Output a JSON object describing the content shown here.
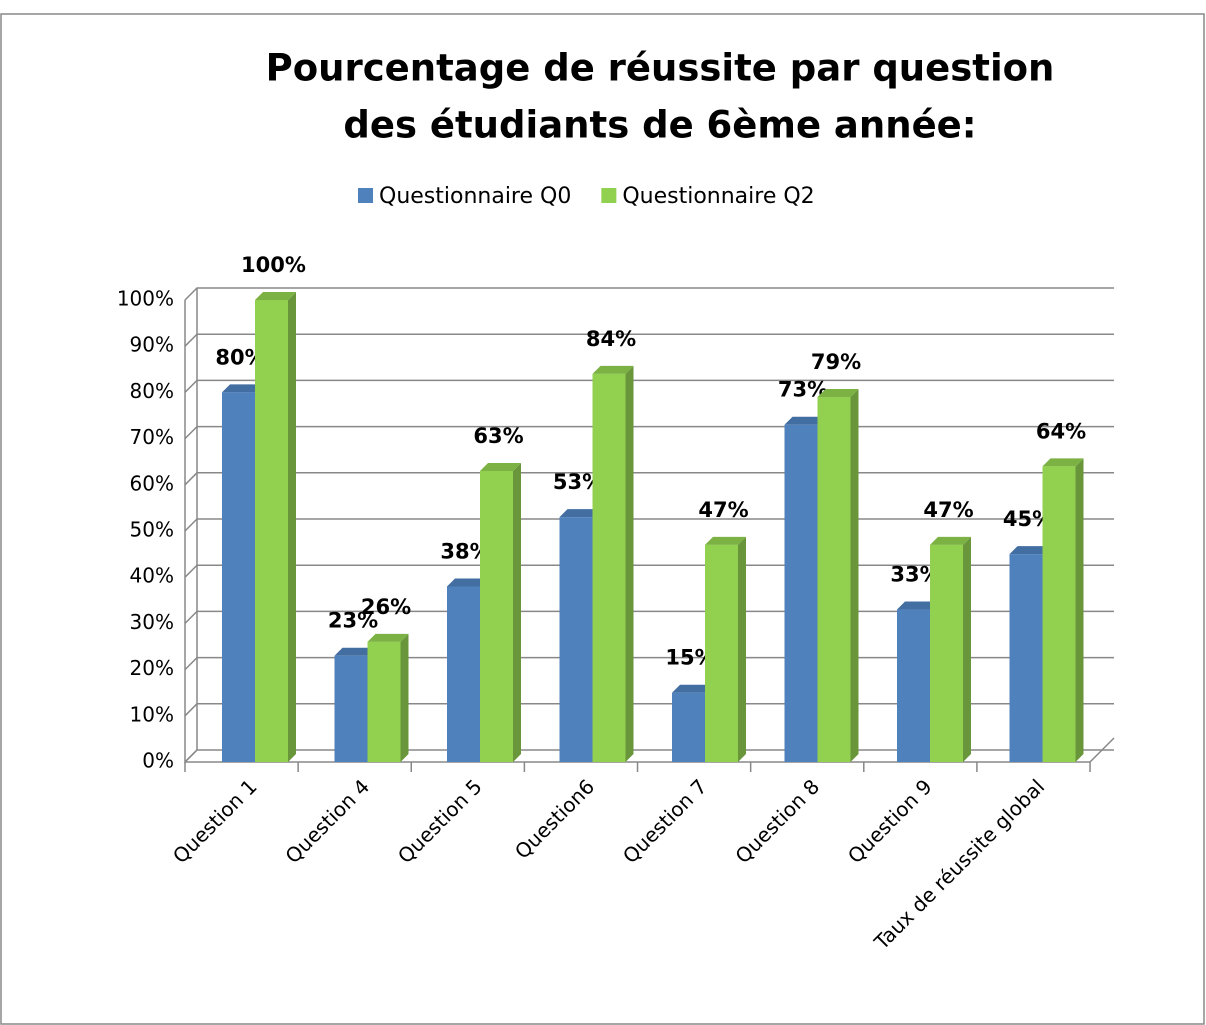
{
  "chart_data": {
    "type": "bar3d",
    "title": [
      "Pourcentage de réussite par question",
      "des étudiants de 6ème année:"
    ],
    "categories": [
      "Question 1",
      "Question 4",
      "Question 5",
      "Question6",
      "Question 7",
      "Question 8",
      "Question 9",
      "Taux de réussite global"
    ],
    "series": [
      {
        "name": "Questionnaire Q0",
        "color": "#4f81bd",
        "values": [
          80,
          23,
          38,
          53,
          15,
          73,
          33,
          45
        ],
        "value_labels": [
          "80%",
          "23%",
          "38%",
          "53%",
          "15%",
          "73%",
          "33%",
          "45%"
        ]
      },
      {
        "name": "Questionnaire Q2",
        "color": "#92d050",
        "values": [
          100,
          26,
          63,
          84,
          47,
          79,
          47,
          64
        ],
        "value_labels": [
          "100%",
          "26%",
          "63%",
          "84%",
          "47%",
          "79%",
          "47%",
          "64%"
        ]
      }
    ],
    "ylim": [
      0,
      100
    ],
    "yticks": [
      {
        "value": 0,
        "label": "0%"
      },
      {
        "value": 10,
        "label": "10%"
      },
      {
        "value": 20,
        "label": "20%"
      },
      {
        "value": 30,
        "label": "30%"
      },
      {
        "value": 40,
        "label": "40%"
      },
      {
        "value": 50,
        "label": "50%"
      },
      {
        "value": 60,
        "label": "60%"
      },
      {
        "value": 70,
        "label": "70%"
      },
      {
        "value": 80,
        "label": "80%"
      },
      {
        "value": 90,
        "label": "90%"
      },
      {
        "value": 100,
        "label": "100%"
      }
    ],
    "grid": true,
    "legend": "top"
  }
}
